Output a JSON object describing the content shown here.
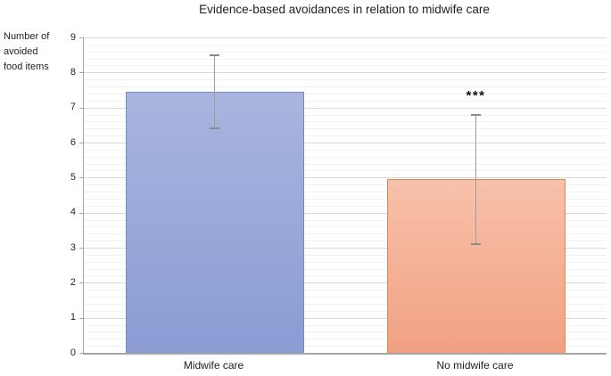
{
  "chart_data": {
    "type": "bar",
    "title": "Evidence-based avoidances in relation to midwife care",
    "ylabel": "Number of\navoided\nfood items",
    "xlabel": "",
    "categories": [
      "Midwife care",
      "No midwife care"
    ],
    "values": [
      7.45,
      4.95
    ],
    "errors": [
      1.05,
      1.85
    ],
    "significance": [
      "",
      "***"
    ],
    "ylim": [
      0,
      9
    ],
    "y_major_ticks": [
      0,
      1,
      2,
      3,
      4,
      5,
      6,
      7,
      8,
      9
    ],
    "y_minor_step": 0.2,
    "grid": "major and minor horizontal gridlines, no legend",
    "colors": {
      "bar_fills_top": [
        "#A9B5DF",
        "#F8C1AA"
      ],
      "bar_fills_bottom": [
        "#8A9CD4",
        "#F1A183"
      ],
      "bar_borders": [
        "#7588C7",
        "#DE8455"
      ],
      "major_gridline": "#D9D9D9",
      "minor_gridline": "#F2F2F2",
      "axis_line": "#A6A6A6",
      "error_bar": "#9E9E9E",
      "text": "#1F1F1F"
    }
  }
}
